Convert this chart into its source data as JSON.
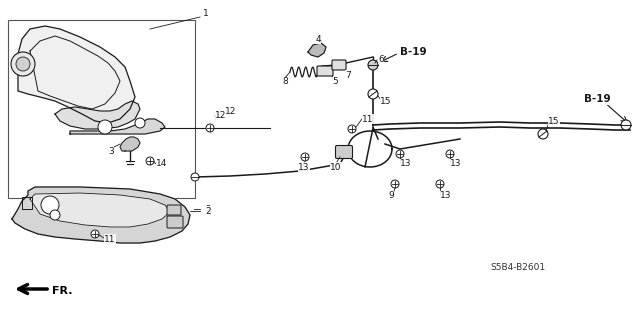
{
  "bg_color": "#ffffff",
  "fig_width": 6.4,
  "fig_height": 3.19,
  "dpi": 100,
  "diagram_code": "S5B4-B2601",
  "line_color": "#1a1a1a",
  "label_fontsize": 6.5,
  "bold_label_fontsize": 7.5
}
